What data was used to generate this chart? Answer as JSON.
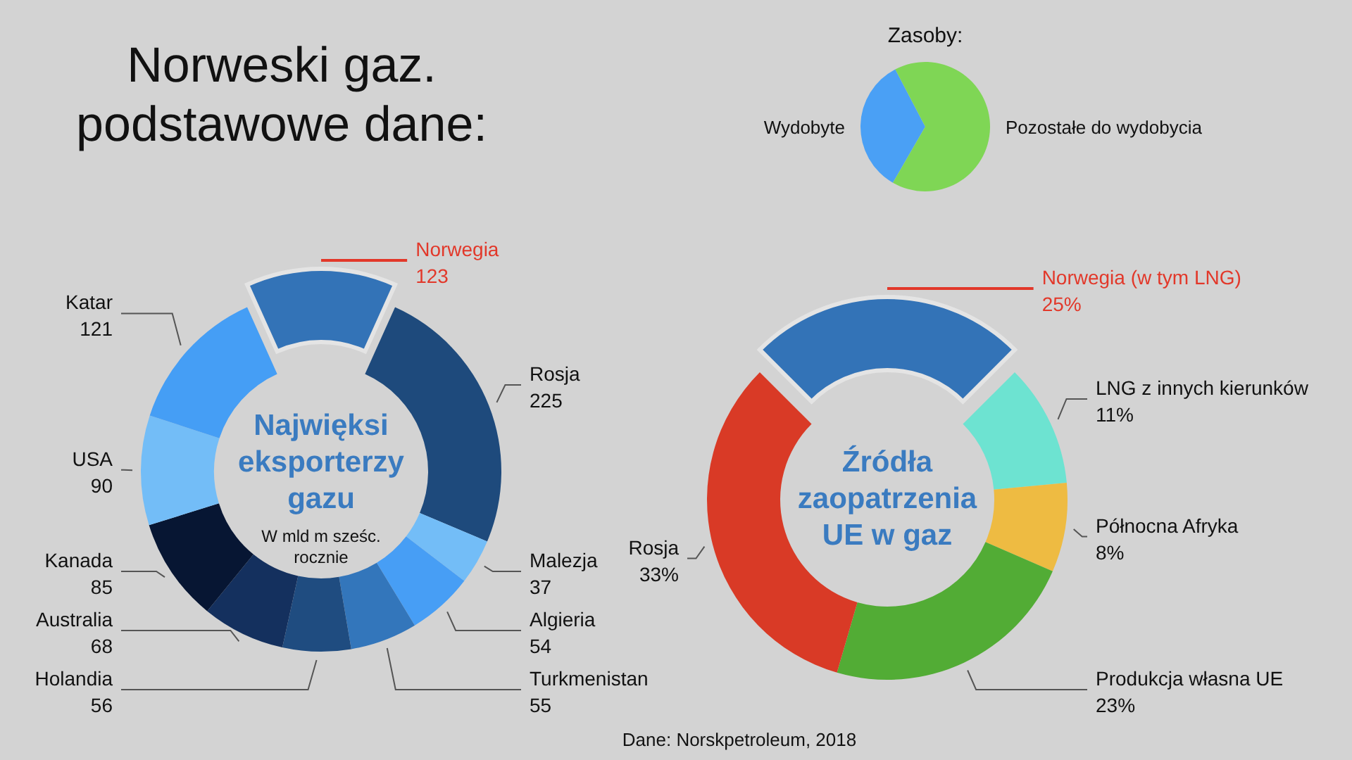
{
  "chart_data": [
    {
      "type": "other",
      "title": "Norweski gaz. podstawowe dane:",
      "annotations": [
        "Dane: Norskpetroleum, 2018"
      ]
    },
    {
      "type": "pie",
      "title": "Zasoby:",
      "categories": [
        "Wydobyte",
        "Pozostałe do wydobycia"
      ],
      "values": [
        34,
        66
      ],
      "colors": [
        "#4aa0f5",
        "#7fd655"
      ]
    },
    {
      "type": "donut",
      "title": "Najwięksi eksporterzy gazu",
      "subtitle": "W mld m sześc. rocznie",
      "categories": [
        "Norwegia",
        "Rosja",
        "Malezja",
        "Algieria",
        "Turkmenistan",
        "Holandia",
        "Australia",
        "Kanada",
        "USA",
        "Katar"
      ],
      "values": [
        123,
        225,
        37,
        54,
        55,
        56,
        68,
        85,
        90,
        121
      ],
      "colors": [
        "#3373b7",
        "#1e4a7c",
        "#73bdf7",
        "#479ef5",
        "#3376bb",
        "#1f4c80",
        "#14305e",
        "#071633",
        "#73bdf7",
        "#459ef5"
      ],
      "data_labels": true
    },
    {
      "type": "donut",
      "title": "Źródła zaopatrzenia UE w gaz",
      "categories": [
        "Norwegia (w tym LNG)",
        "LNG z innych kierunków",
        "Północna Afryka",
        "Produkcja własna UE",
        "Rosja"
      ],
      "values": [
        25,
        11,
        8,
        23,
        33
      ],
      "colors": [
        "#3373b7",
        "#6de3d1",
        "#eebb42",
        "#52ac35",
        "#d93a26"
      ],
      "value_labels": [
        "25%",
        "11%",
        "8%",
        "23%",
        "33%"
      ]
    }
  ]
}
